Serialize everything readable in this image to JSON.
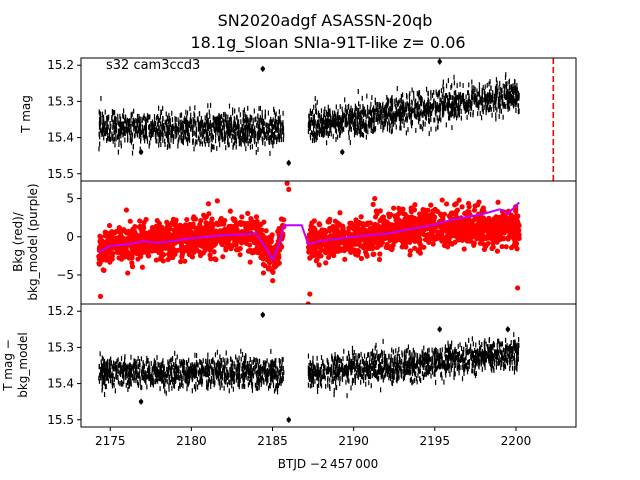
{
  "figure": {
    "title_line1": "SN2020adgf  ASASSN-20qb",
    "title_line2": "18.1g_Sloan SNIa-91T-like z= 0.06",
    "annotation": "s32 cam3ccd3"
  },
  "colors": {
    "lightcurve": "#000000",
    "background": "#ff0000",
    "bkg_model": "#bf00ff",
    "marker_line": "#ff0000"
  },
  "chart_data": [
    {
      "type": "scatter",
      "panel": "top",
      "ylabel": "T mag",
      "xlim": [
        2173.2,
        2203.7
      ],
      "ylim": [
        15.52,
        15.18
      ],
      "inverted_y": true,
      "yticks": [
        "15.2",
        "15.3",
        "15.4",
        "15.5"
      ],
      "ytick_values": [
        15.2,
        15.3,
        15.4,
        15.5
      ],
      "segments": [
        {
          "x_start": 2174.3,
          "x_end": 2185.7,
          "y_start": 15.37,
          "y_end": 15.38,
          "scatter": 0.05
        },
        {
          "x_start": 2187.2,
          "x_end": 2200.2,
          "y_start": 15.37,
          "y_end": 15.28,
          "scatter": 0.05
        }
      ],
      "outliers": [
        {
          "x": 2184.4,
          "y": 15.21
        },
        {
          "x": 2195.3,
          "y": 15.19
        },
        {
          "x": 2176.9,
          "y": 15.44
        },
        {
          "x": 2186.0,
          "y": 15.47
        },
        {
          "x": 2189.3,
          "y": 15.44
        }
      ],
      "vertical_marker": {
        "x": 2202.3,
        "style": "dashed"
      }
    },
    {
      "type": "scatter",
      "panel": "middle",
      "ylabel": "Bkg (red)/\nbkg_model (purple)",
      "ylabel_line1": "Bkg (red)/",
      "ylabel_line2": "bkg_model (purple)",
      "xlim": [
        2173.2,
        2203.7
      ],
      "ylim": [
        -8.8,
        7.3
      ],
      "yticks": [
        "5",
        "0",
        "−5"
      ],
      "ytick_values": [
        5,
        0,
        -5
      ],
      "series": [
        {
          "name": "Bkg (red)",
          "color": "#ff0000",
          "scatter": 2.2
        },
        {
          "name": "bkg_model (purple)",
          "color": "#bf00ff"
        }
      ],
      "bkg_model": {
        "x": [
          2174.3,
          2175.0,
          2176.0,
          2177.0,
          2178.0,
          2179.0,
          2180.0,
          2181.0,
          2182.0,
          2183.0,
          2184.0,
          2184.6,
          2185.0,
          2185.4,
          2185.7,
          2186.0,
          2186.8,
          2187.2,
          2188.0,
          2189.0,
          2190.0,
          2191.0,
          2192.0,
          2193.0,
          2194.0,
          2195.0,
          2196.0,
          2197.0,
          2198.0,
          2199.0,
          2199.5,
          2200.2
        ],
        "y": [
          -2.0,
          -1.2,
          -1.0,
          -0.6,
          -0.8,
          -0.5,
          -0.2,
          0.0,
          0.2,
          0.3,
          0.4,
          -1.5,
          -3.0,
          -1.0,
          1.5,
          1.5,
          1.5,
          -1.0,
          -0.5,
          -0.3,
          0.0,
          0.2,
          0.4,
          0.8,
          1.2,
          1.6,
          2.2,
          2.6,
          3.0,
          3.6,
          3.0,
          4.5
        ]
      },
      "red_outliers": [
        {
          "x": 2174.4,
          "y": -7.8
        },
        {
          "x": 2185.9,
          "y": 7.0
        },
        {
          "x": 2186.0,
          "y": 6.2
        },
        {
          "x": 2187.2,
          "y": -8.8
        },
        {
          "x": 2187.3,
          "y": -7.5
        },
        {
          "x": 2191.3,
          "y": 5.0
        },
        {
          "x": 2196.5,
          "y": 4.8
        },
        {
          "x": 2176.0,
          "y": 3.5
        },
        {
          "x": 2200.1,
          "y": -6.7
        }
      ]
    },
    {
      "type": "scatter",
      "panel": "bottom",
      "ylabel": "T mag −\nbkg_model",
      "ylabel_line1": "T mag −",
      "ylabel_line2": "bkg_model",
      "xlabel": "BTJD −2 457 000",
      "xlim": [
        2173.2,
        2203.7
      ],
      "ylim": [
        15.52,
        15.18
      ],
      "inverted_y": true,
      "yticks": [
        "15.2",
        "15.3",
        "15.4",
        "15.5"
      ],
      "ytick_values": [
        15.2,
        15.3,
        15.4,
        15.5
      ],
      "xticks": [
        "2175",
        "2180",
        "2185",
        "2190",
        "2195",
        "2200"
      ],
      "xtick_values": [
        2175,
        2180,
        2185,
        2190,
        2195,
        2200
      ],
      "segments": [
        {
          "x_start": 2174.3,
          "x_end": 2185.7,
          "y_start": 15.37,
          "y_end": 15.37,
          "scatter": 0.045
        },
        {
          "x_start": 2187.2,
          "x_end": 2200.2,
          "y_start": 15.37,
          "y_end": 15.32,
          "scatter": 0.045
        }
      ],
      "outliers": [
        {
          "x": 2184.4,
          "y": 15.21
        },
        {
          "x": 2195.3,
          "y": 15.25
        },
        {
          "x": 2199.5,
          "y": 15.25
        },
        {
          "x": 2186.0,
          "y": 15.5
        },
        {
          "x": 2176.9,
          "y": 15.45
        }
      ]
    }
  ]
}
